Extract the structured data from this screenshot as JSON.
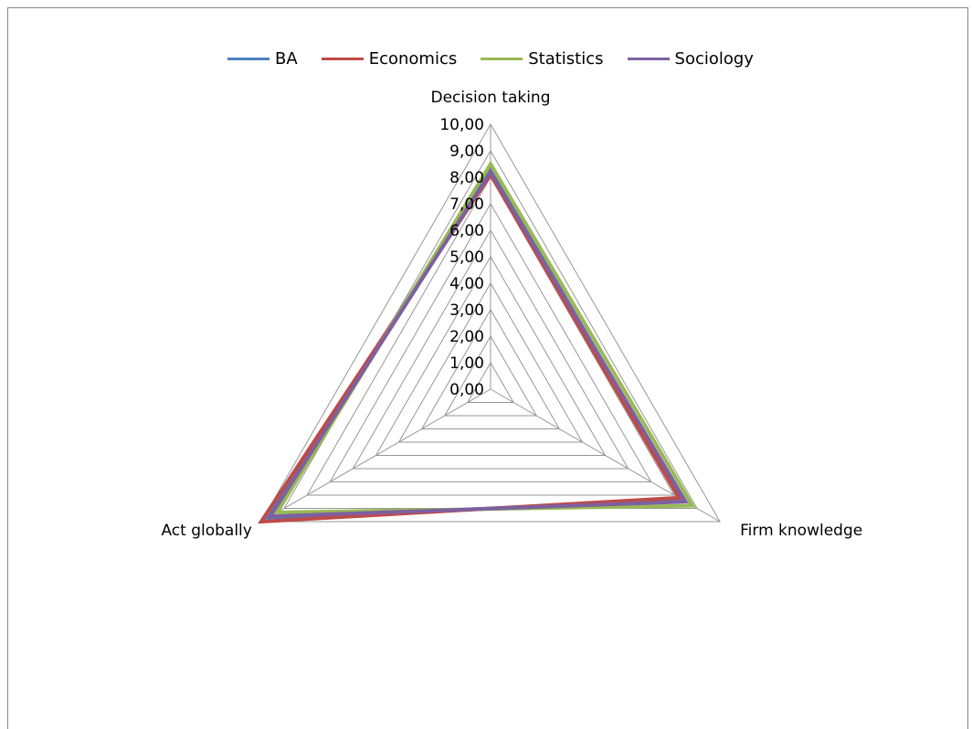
{
  "chart_data": {
    "type": "radar",
    "title": "",
    "categories": [
      "Decision taking",
      "Firm knowledge",
      "Act globally"
    ],
    "tick_labels": [
      "0,00",
      "1,00",
      "2,00",
      "3,00",
      "4,00",
      "5,00",
      "6,00",
      "7,00",
      "8,00",
      "9,00",
      "10,00"
    ],
    "rlim": [
      0,
      10
    ],
    "legend_position": "top",
    "grid": true,
    "series": [
      {
        "name": "BA",
        "color": "#4a7ebb",
        "values": [
          8.3,
          8.4,
          9.7
        ]
      },
      {
        "name": "Economics",
        "color": "#be4b48",
        "values": [
          8.1,
          8.2,
          10.0
        ]
      },
      {
        "name": "Statistics",
        "color": "#98b954",
        "values": [
          8.5,
          8.8,
          9.3
        ]
      },
      {
        "name": "Sociology",
        "color": "#7d60a0",
        "values": [
          8.2,
          8.5,
          9.6
        ]
      }
    ]
  }
}
